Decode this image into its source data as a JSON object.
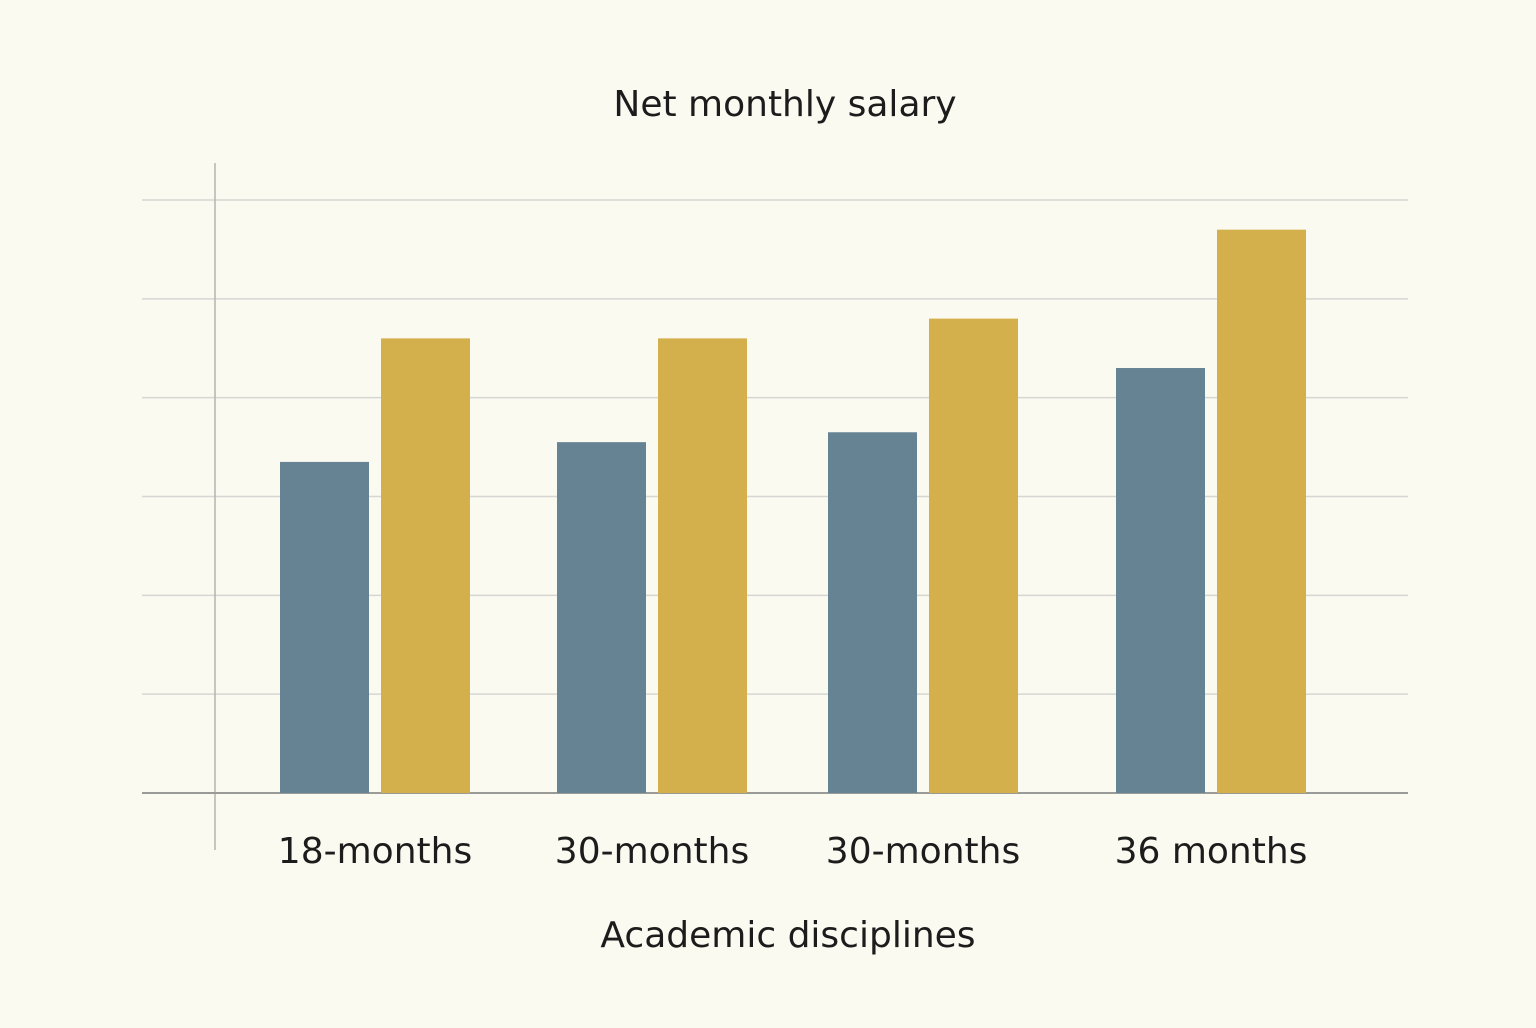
{
  "chart_data": {
    "type": "bar",
    "title": "Net monthly salary",
    "xlabel": "Academic disciplines",
    "ylabel": "",
    "categories": [
      "18-months",
      "30-months",
      "30-months",
      "36 months"
    ],
    "series": [
      {
        "color": "#668394",
        "values": [
          3.35,
          3.55,
          3.65,
          4.3
        ]
      },
      {
        "color": "#d4b04d",
        "values": [
          4.6,
          4.6,
          4.8,
          5.7
        ]
      }
    ],
    "ylim": [
      0,
      6
    ],
    "grid": true,
    "legend": "none"
  }
}
